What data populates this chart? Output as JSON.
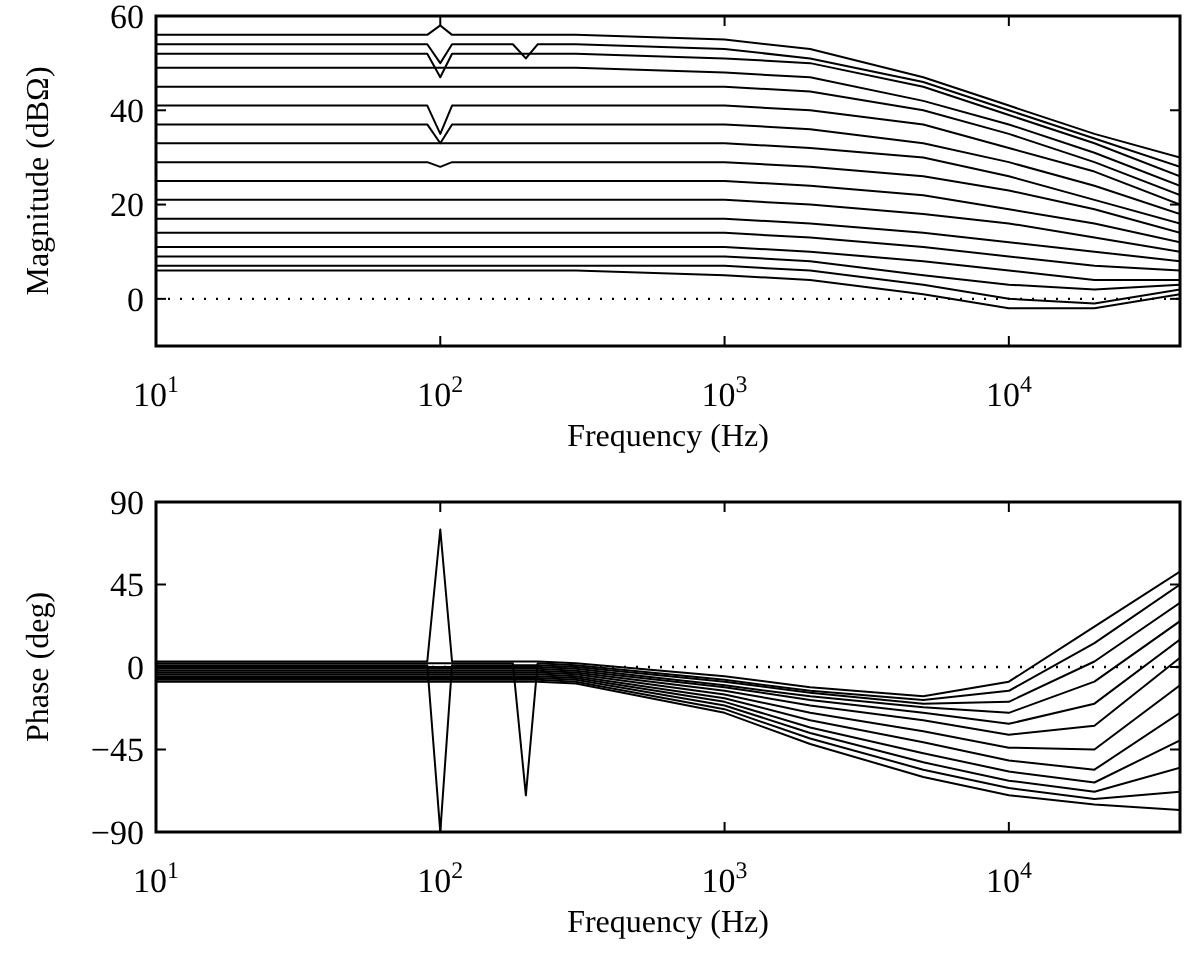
{
  "chart_data": [
    {
      "type": "line",
      "xlabel": "Frequency (Hz)",
      "ylabel": "Magnitude (dBΩ)",
      "log": "x",
      "x": [
        10,
        50,
        90,
        100,
        110,
        180,
        200,
        220,
        300,
        1000,
        2000,
        5000,
        10000,
        20000,
        40000
      ],
      "xlim": [
        10,
        40000
      ],
      "xticks": [
        {
          "value": 10,
          "label": "10$^{1}$"
        },
        {
          "value": 100,
          "label": "10$^{2}$"
        },
        {
          "value": 1000,
          "label": "10$^{3}$"
        },
        {
          "value": 10000,
          "label": "10$^{4}$"
        }
      ],
      "ylim": [
        -10,
        60
      ],
      "yticks": [
        0,
        20,
        40,
        60
      ],
      "ref_lines": [
        {
          "axis": "y",
          "value": 0,
          "line_style": "dotted"
        }
      ],
      "series": [
        {
          "color": "#000000",
          "values": [
            56,
            56,
            56,
            58,
            56,
            56,
            56,
            56,
            56,
            55,
            53,
            47,
            41,
            35,
            30
          ]
        },
        {
          "color": "#000000",
          "values": [
            54,
            54,
            54,
            50,
            54,
            54,
            51,
            54,
            54,
            53,
            51,
            46,
            40,
            34,
            28
          ]
        },
        {
          "color": "#000000",
          "values": [
            52,
            52,
            52,
            47,
            52,
            52,
            52,
            52,
            52,
            51,
            50,
            45,
            39,
            33,
            26
          ]
        },
        {
          "color": "#000000",
          "values": [
            49,
            49,
            49,
            49,
            49,
            49,
            49,
            49,
            49,
            48,
            47,
            42,
            37,
            31,
            24
          ]
        },
        {
          "color": "#000000",
          "values": [
            45,
            45,
            45,
            45,
            45,
            45,
            45,
            45,
            45,
            45,
            44,
            40,
            35,
            29,
            22
          ]
        },
        {
          "color": "#000000",
          "values": [
            41,
            41,
            41,
            35,
            41,
            41,
            41,
            41,
            41,
            41,
            40,
            37,
            32,
            27,
            20
          ]
        },
        {
          "color": "#000000",
          "values": [
            37,
            37,
            37,
            33,
            37,
            37,
            37,
            37,
            37,
            37,
            36,
            33,
            29,
            24,
            18
          ]
        },
        {
          "color": "#000000",
          "values": [
            33,
            33,
            33,
            33,
            33,
            33,
            33,
            33,
            33,
            33,
            32,
            30,
            26,
            21,
            16
          ]
        },
        {
          "color": "#000000",
          "values": [
            29,
            29,
            29,
            28,
            29,
            29,
            29,
            29,
            29,
            29,
            28,
            26,
            23,
            19,
            14
          ]
        },
        {
          "color": "#000000",
          "values": [
            25,
            25,
            25,
            25,
            25,
            25,
            25,
            25,
            25,
            25,
            24,
            22,
            19,
            16,
            12
          ]
        },
        {
          "color": "#000000",
          "values": [
            21,
            21,
            21,
            21,
            21,
            21,
            21,
            21,
            21,
            21,
            20,
            18,
            16,
            13,
            10
          ]
        },
        {
          "color": "#000000",
          "values": [
            17,
            17,
            17,
            17,
            17,
            17,
            17,
            17,
            17,
            17,
            16,
            14,
            12,
            10,
            8
          ]
        },
        {
          "color": "#000000",
          "values": [
            14,
            14,
            14,
            14,
            14,
            14,
            14,
            14,
            14,
            14,
            13,
            11,
            9,
            7,
            6
          ]
        },
        {
          "color": "#000000",
          "values": [
            11,
            11,
            11,
            11,
            11,
            11,
            11,
            11,
            11,
            11,
            10,
            8,
            6,
            4,
            4
          ]
        },
        {
          "color": "#000000",
          "values": [
            9,
            9,
            9,
            9,
            9,
            9,
            9,
            9,
            9,
            9,
            8,
            5,
            3,
            2,
            3
          ]
        },
        {
          "color": "#000000",
          "values": [
            7,
            7,
            7,
            7,
            7,
            7,
            7,
            7,
            7,
            7,
            6,
            3,
            0,
            -1,
            2
          ]
        },
        {
          "color": "#000000",
          "values": [
            6,
            6,
            6,
            6,
            6,
            6,
            6,
            6,
            6,
            5,
            4,
            1,
            -2,
            -2,
            1
          ]
        }
      ]
    },
    {
      "type": "line",
      "xlabel": "Frequency (Hz)",
      "ylabel": "Phase (deg)",
      "log": "x",
      "x": [
        10,
        50,
        90,
        100,
        110,
        180,
        200,
        220,
        300,
        1000,
        2000,
        5000,
        10000,
        20000,
        40000
      ],
      "xlim": [
        10,
        40000
      ],
      "xticks": [
        {
          "value": 10,
          "label": "10$^{1}$"
        },
        {
          "value": 100,
          "label": "10$^{2}$"
        },
        {
          "value": 1000,
          "label": "10$^{3}$"
        },
        {
          "value": 10000,
          "label": "10$^{4}$"
        }
      ],
      "ylim": [
        -90,
        90
      ],
      "yticks": [
        {
          "value": -90,
          "label": "−90"
        },
        {
          "value": -45,
          "label": "−45"
        },
        0,
        45,
        90
      ],
      "ref_lines": [
        {
          "axis": "y",
          "value": 0,
          "line_style": "dotted"
        }
      ],
      "series": [
        {
          "color": "#000000",
          "values": [
            3,
            3,
            3,
            75,
            3,
            3,
            3,
            3,
            2,
            -5,
            -11,
            -16,
            -8,
            22,
            52
          ]
        },
        {
          "color": "#000000",
          "values": [
            2,
            2,
            2,
            2,
            2,
            2,
            -70,
            2,
            1,
            -7,
            -13,
            -18,
            -13,
            13,
            45
          ]
        },
        {
          "color": "#000000",
          "values": [
            1,
            1,
            1,
            -90,
            1,
            1,
            1,
            1,
            0,
            -8,
            -14,
            -20,
            -19,
            3,
            35
          ]
        },
        {
          "color": "#000000",
          "values": [
            0,
            0,
            0,
            0,
            0,
            0,
            0,
            0,
            -1,
            -10,
            -16,
            -22,
            -25,
            -8,
            25
          ]
        },
        {
          "color": "#000000",
          "values": [
            -1,
            -1,
            -1,
            -1,
            -1,
            -1,
            -1,
            -1,
            -2,
            -11,
            -18,
            -25,
            -31,
            -20,
            15
          ]
        },
        {
          "color": "#000000",
          "values": [
            -2,
            -2,
            -2,
            -2,
            -2,
            -2,
            -2,
            -2,
            -3,
            -13,
            -21,
            -29,
            -37,
            -32,
            5
          ]
        },
        {
          "color": "#000000",
          "values": [
            -3,
            -3,
            -3,
            -3,
            -3,
            -3,
            -3,
            -3,
            -4,
            -15,
            -25,
            -35,
            -44,
            -45,
            -10
          ]
        },
        {
          "color": "#000000",
          "values": [
            -4,
            -4,
            -4,
            -4,
            -4,
            -4,
            -4,
            -4,
            -5,
            -17,
            -29,
            -41,
            -51,
            -56,
            -25
          ]
        },
        {
          "color": "#000000",
          "values": [
            -5,
            -5,
            -5,
            -5,
            -5,
            -5,
            -5,
            -5,
            -6,
            -19,
            -33,
            -47,
            -57,
            -63,
            -40
          ]
        },
        {
          "color": "#000000",
          "values": [
            -6,
            -6,
            -6,
            -6,
            -6,
            -6,
            -6,
            -6,
            -7,
            -21,
            -36,
            -52,
            -62,
            -68,
            -55
          ]
        },
        {
          "color": "#000000",
          "values": [
            -7,
            -7,
            -7,
            -7,
            -7,
            -7,
            -7,
            -7,
            -8,
            -23,
            -39,
            -56,
            -66,
            -72,
            -68
          ]
        },
        {
          "color": "#000000",
          "values": [
            -8,
            -8,
            -8,
            -8,
            -8,
            -8,
            -8,
            -8,
            -9,
            -25,
            -42,
            -60,
            -70,
            -75,
            -78
          ]
        }
      ]
    }
  ]
}
